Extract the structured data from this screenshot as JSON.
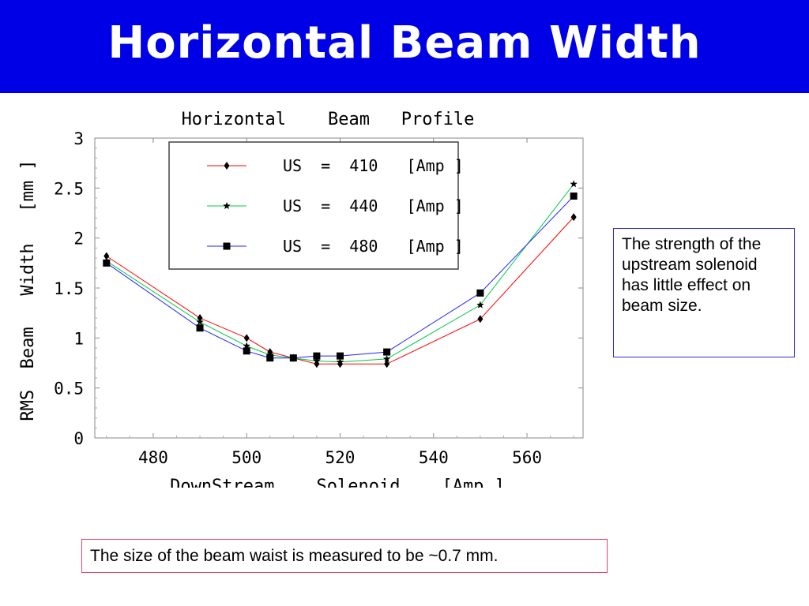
{
  "slide": {
    "title": "Horizontal Beam Width",
    "note_right": "The strength of the upstream solenoid has little effect on beam size.",
    "note_bottom": "The size of the beam waist is measured to be ~0.7 mm."
  },
  "colors": {
    "title_bg": "#0000e6",
    "title_text": "#ffffff",
    "series_410": "#ff0000",
    "series_440": "#00cc44",
    "series_480": "#2222ff",
    "note_right_border": "#2b2bd6",
    "note_bottom_border": "#e0436b"
  },
  "chart_data": {
    "type": "line",
    "title": "Horizontal    Beam   Profile",
    "xlabel": "DownStream    Solenoid    [Amp ]",
    "ylabel": "RMS  Beam   Width   [mm ]",
    "xlim": [
      467.5,
      572
    ],
    "ylim": [
      0,
      3
    ],
    "xticks": [
      480,
      500,
      520,
      540,
      560
    ],
    "yticks": [
      0,
      0.5,
      1,
      1.5,
      2,
      2.5,
      3
    ],
    "ytick_labels": [
      "0",
      "0.5",
      "1",
      "1.5",
      "2",
      "2.5",
      "3"
    ],
    "legend_position": "top-left",
    "series": [
      {
        "name": "US  =  410   [Amp ]",
        "marker": "diamond",
        "x": [
          470,
          490,
          500,
          505,
          510,
          515,
          520,
          530,
          550,
          570
        ],
        "y": [
          1.82,
          1.2,
          1.0,
          0.86,
          0.8,
          0.74,
          0.74,
          0.74,
          1.19,
          2.21
        ]
      },
      {
        "name": "US  =  440   [Amp ]",
        "marker": "star",
        "x": [
          470,
          490,
          500,
          505,
          510,
          515,
          520,
          530,
          550,
          570
        ],
        "y": [
          1.77,
          1.16,
          0.92,
          0.83,
          0.8,
          0.77,
          0.76,
          0.79,
          1.33,
          2.54
        ]
      },
      {
        "name": "US  =  480   [Amp ]",
        "marker": "square",
        "x": [
          470,
          490,
          500,
          505,
          510,
          515,
          520,
          530,
          550,
          570
        ],
        "y": [
          1.75,
          1.1,
          0.87,
          0.8,
          0.8,
          0.82,
          0.82,
          0.86,
          1.45,
          2.42
        ]
      }
    ]
  }
}
